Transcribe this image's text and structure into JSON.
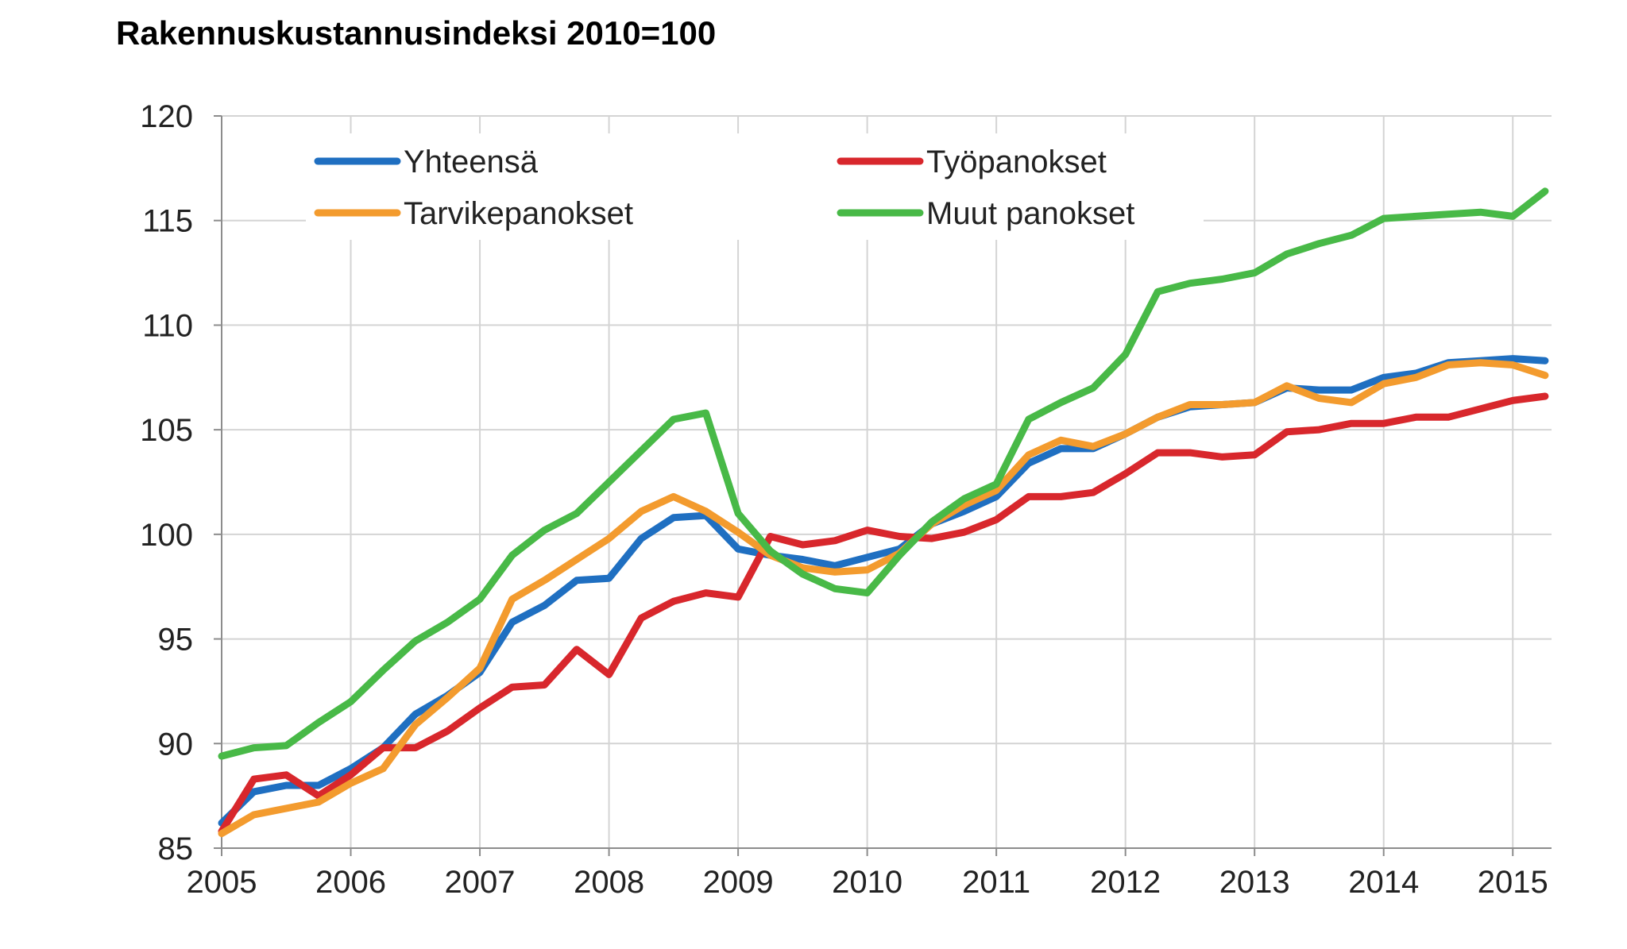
{
  "chart_data": {
    "type": "line",
    "title": "Rakennuskustannusindeksi 2010=100",
    "xlabel": "",
    "ylabel": "",
    "xlim": [
      2005.0,
      2015.3
    ],
    "ylim": [
      85,
      120
    ],
    "x_ticks": [
      "2005",
      "2006",
      "2007",
      "2008",
      "2009",
      "2010",
      "2011",
      "2012",
      "2013",
      "2014",
      "2015"
    ],
    "y_ticks": [
      "85",
      "90",
      "95",
      "100",
      "105",
      "110",
      "115",
      "120"
    ],
    "grid": true,
    "legend": "top",
    "x": [
      2005.0,
      2005.25,
      2005.5,
      2005.75,
      2006.0,
      2006.25,
      2006.5,
      2006.75,
      2007.0,
      2007.25,
      2007.5,
      2007.75,
      2008.0,
      2008.25,
      2008.5,
      2008.75,
      2009.0,
      2009.25,
      2009.5,
      2009.75,
      2010.0,
      2010.25,
      2010.5,
      2010.75,
      2011.0,
      2011.25,
      2011.5,
      2011.75,
      2012.0,
      2012.25,
      2012.5,
      2012.75,
      2013.0,
      2013.25,
      2013.5,
      2013.75,
      2014.0,
      2014.25,
      2014.5,
      2014.75,
      2015.0,
      2015.25
    ],
    "series": [
      {
        "name": "Yhteensä",
        "color": "#1f6fc1",
        "values": [
          86.2,
          87.7,
          88.0,
          88.0,
          88.8,
          89.8,
          91.4,
          92.3,
          93.4,
          95.8,
          96.6,
          97.8,
          97.9,
          99.8,
          100.8,
          100.9,
          99.3,
          99.0,
          98.8,
          98.5,
          98.9,
          99.3,
          100.5,
          101.1,
          101.8,
          103.4,
          104.1,
          104.1,
          104.8,
          105.6,
          106.1,
          106.2,
          106.3,
          107.0,
          106.9,
          106.9,
          107.5,
          107.7,
          108.2,
          108.3,
          108.4,
          108.3
        ]
      },
      {
        "name": "Työpanokset",
        "color": "#d8272c",
        "values": [
          85.8,
          88.3,
          88.5,
          87.5,
          88.5,
          89.8,
          89.8,
          90.6,
          91.7,
          92.7,
          92.8,
          94.5,
          93.3,
          96.0,
          96.8,
          97.2,
          97.0,
          99.9,
          99.5,
          99.7,
          100.2,
          99.9,
          99.8,
          100.1,
          100.7,
          101.8,
          101.8,
          102.0,
          102.9,
          103.9,
          103.9,
          103.7,
          103.8,
          104.9,
          105.0,
          105.3,
          105.3,
          105.6,
          105.6,
          106.0,
          106.4,
          106.6
        ]
      },
      {
        "name": "Tarvikepanokset",
        "color": "#f39b2e",
        "values": [
          85.7,
          86.6,
          86.9,
          87.2,
          88.1,
          88.8,
          90.9,
          92.2,
          93.6,
          96.9,
          97.8,
          98.8,
          99.8,
          101.1,
          101.8,
          101.1,
          100.1,
          99.0,
          98.4,
          98.2,
          98.3,
          99.1,
          100.5,
          101.4,
          102.1,
          103.8,
          104.5,
          104.2,
          104.8,
          105.6,
          106.2,
          106.2,
          106.3,
          107.1,
          106.5,
          106.3,
          107.2,
          107.5,
          108.1,
          108.2,
          108.1,
          107.6
        ]
      },
      {
        "name": "Muut panokset",
        "color": "#48b947",
        "values": [
          89.4,
          89.8,
          89.9,
          91.0,
          92.0,
          93.5,
          94.9,
          95.8,
          96.9,
          99.0,
          100.2,
          101.0,
          102.5,
          104.0,
          105.5,
          105.8,
          101.0,
          99.2,
          98.1,
          97.4,
          97.2,
          99.0,
          100.6,
          101.7,
          102.4,
          105.5,
          106.3,
          107.0,
          108.6,
          111.6,
          112.0,
          112.2,
          112.5,
          113.4,
          113.9,
          114.3,
          115.1,
          115.2,
          115.3,
          115.4,
          115.2,
          116.4
        ]
      }
    ]
  }
}
